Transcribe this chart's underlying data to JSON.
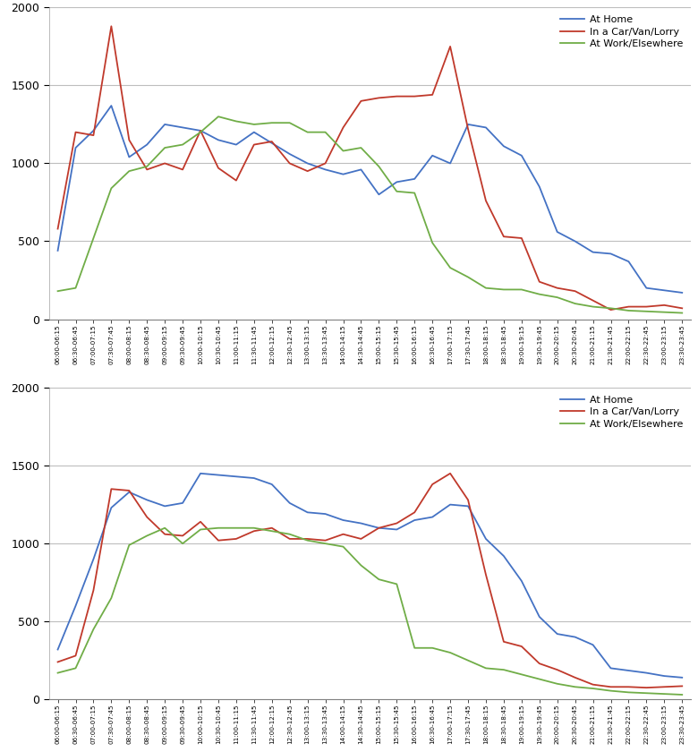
{
  "x_labels": [
    "06:00-06:15",
    "06:30-06:45",
    "07:00-07:15",
    "07:30-07:45",
    "08:00-08:15",
    "08:30-08:45",
    "09:00-09:15",
    "09:30-09:45",
    "10:00-10:15",
    "10:30-10:45",
    "11:00-11:15",
    "11:30-11:45",
    "12:00-12:15",
    "12:30-12:45",
    "13:00-13:15",
    "13:30-13:45",
    "14:00-14:15",
    "14:30-14:45",
    "15:00-15:15",
    "15:30-15:45",
    "16:00-16:15",
    "16:30-16:45",
    "17:00-17:15",
    "17:30-17:45",
    "18:00-18:15",
    "18:30-18:45",
    "19:00-19:15",
    "19:30-19:45",
    "20:00-20:15",
    "20:30-20:45",
    "21:00-21:15",
    "21:30-21:45",
    "22:00-22:15",
    "22:30-22:45",
    "23:00-23:15",
    "23:30-23:45"
  ],
  "chart1": {
    "at_home": [
      440,
      1100,
      1210,
      1370,
      1040,
      1120,
      1250,
      1230,
      1210,
      1150,
      1120,
      1200,
      1130,
      1060,
      1000,
      960,
      930,
      960,
      800,
      880,
      900,
      1050,
      1000,
      1250,
      1230,
      1110,
      1050,
      850,
      560,
      500,
      430,
      420,
      370,
      200,
      185,
      170
    ],
    "car": [
      580,
      1200,
      1180,
      1880,
      1150,
      960,
      1000,
      960,
      1210,
      970,
      890,
      1120,
      1140,
      1000,
      950,
      1000,
      1230,
      1400,
      1420,
      1430,
      1430,
      1440,
      1750,
      1220,
      760,
      530,
      520,
      240,
      200,
      180,
      120,
      60,
      80,
      80,
      90,
      70
    ],
    "work": [
      180,
      200,
      520,
      840,
      950,
      980,
      1100,
      1120,
      1200,
      1300,
      1270,
      1250,
      1260,
      1260,
      1200,
      1200,
      1080,
      1100,
      980,
      820,
      810,
      490,
      330,
      270,
      200,
      190,
      190,
      160,
      140,
      100,
      80,
      70,
      55,
      50,
      45,
      40
    ]
  },
  "chart2": {
    "at_home": [
      320,
      600,
      900,
      1230,
      1330,
      1280,
      1240,
      1260,
      1450,
      1440,
      1430,
      1420,
      1380,
      1260,
      1200,
      1190,
      1150,
      1130,
      1100,
      1090,
      1150,
      1170,
      1250,
      1240,
      1030,
      920,
      760,
      530,
      420,
      400,
      350,
      200,
      185,
      170,
      150,
      140
    ],
    "car": [
      240,
      280,
      700,
      1350,
      1340,
      1170,
      1060,
      1050,
      1140,
      1020,
      1030,
      1080,
      1100,
      1030,
      1030,
      1020,
      1060,
      1030,
      1100,
      1130,
      1200,
      1380,
      1450,
      1280,
      800,
      370,
      340,
      230,
      190,
      140,
      95,
      80,
      80,
      75,
      80,
      85
    ],
    "work": [
      170,
      200,
      450,
      650,
      990,
      1050,
      1100,
      1000,
      1090,
      1100,
      1100,
      1100,
      1080,
      1060,
      1020,
      1000,
      980,
      860,
      770,
      740,
      330,
      330,
      300,
      250,
      200,
      190,
      160,
      130,
      100,
      80,
      70,
      55,
      45,
      40,
      35,
      30
    ]
  },
  "colors": {
    "at_home": "#4472C4",
    "car": "#C0392B",
    "work": "#70AD47"
  },
  "legend_labels": [
    "At Home",
    "In a Car/Van/Lorry",
    "At Work/Elsewhere"
  ],
  "ylim": [
    0,
    2000
  ],
  "yticks": [
    0,
    500,
    1000,
    1500,
    2000
  ],
  "bg_color": "#FFFFFF",
  "grid_color": "#BEBEBE"
}
